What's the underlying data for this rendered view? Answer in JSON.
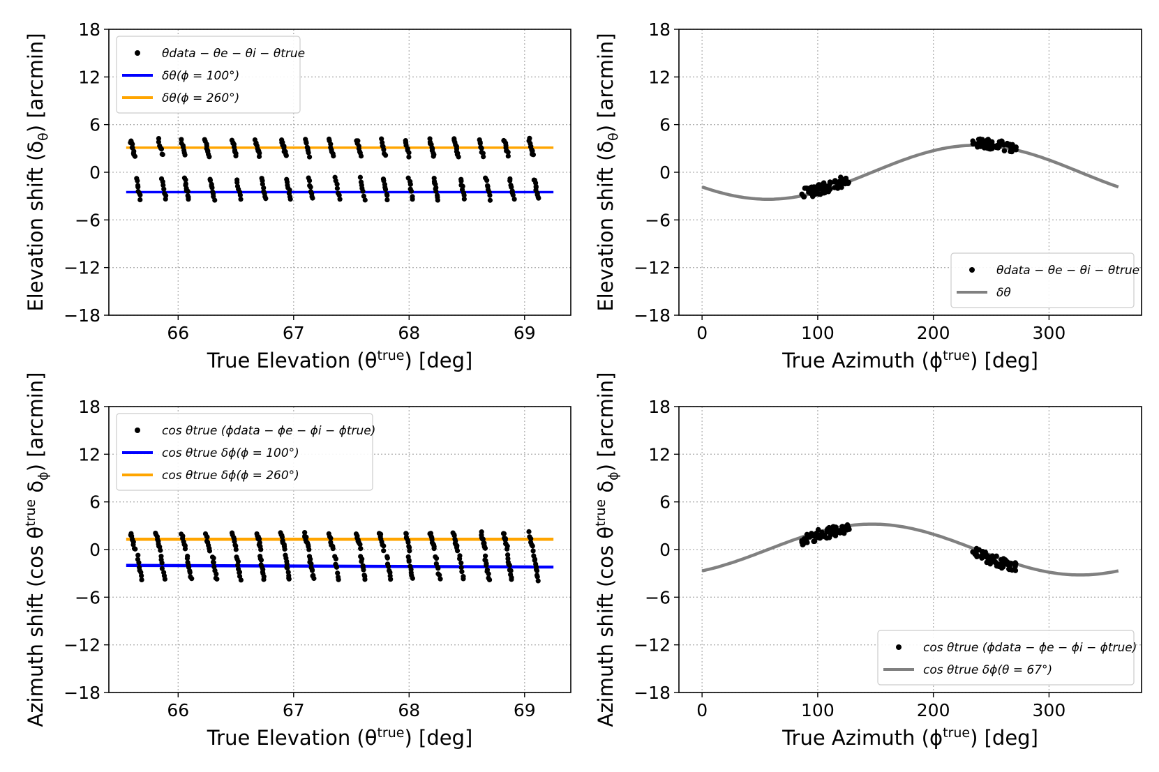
{
  "chart_data": [
    {
      "id": "p1",
      "type": "scatter",
      "xlabel": "True Elevation (θ",
      "xlabel_sup": "true",
      "xlabel_end": ") [deg]",
      "ylabel": "Elevation shift (δ",
      "ylabel_sub": "θ",
      "ylabel_end": ") [arcmin]",
      "xlim": [
        65.4,
        69.4
      ],
      "ylim": [
        -18,
        18
      ],
      "xticks": [
        66,
        67,
        68,
        69
      ],
      "yticks": [
        18,
        12,
        6,
        0,
        -6,
        -12,
        -18
      ],
      "ytick_labels": [
        "18",
        "12",
        "6",
        "0",
        "−6",
        "−12",
        "−18"
      ],
      "legend_position": "upper-left",
      "legend": [
        {
          "kind": "dot",
          "color": "#000000",
          "label": "θdata − θe − θi − θtrue"
        },
        {
          "kind": "line",
          "color": "#0000ff",
          "label": "δθ(ϕ = 100°)"
        },
        {
          "kind": "line",
          "color": "#ffa500",
          "label": "δθ(ϕ = 260°)"
        }
      ],
      "lines": [
        {
          "name": "δθ(ϕ = 100°)",
          "color": "#0000ff",
          "width": 3.5,
          "x": [
            65.55,
            69.25
          ],
          "y": [
            -2.5,
            -2.5
          ]
        },
        {
          "name": "δθ(ϕ = 260°)",
          "color": "#ffa500",
          "width": 3.5,
          "x": [
            65.55,
            69.25
          ],
          "y": [
            3.1,
            3.1
          ]
        }
      ],
      "scatter_series": [
        {
          "name": "θdata − θe − θi − θtrue (ϕ≈260°)",
          "color": "#000000",
          "x_start": 65.6,
          "x_step": 0.215,
          "count": 17,
          "y_top": 4.1,
          "y_bottom": 2.1
        },
        {
          "name": "θdata − θe − θi − θtrue (ϕ≈100°)",
          "color": "#000000",
          "x_start": 65.64,
          "x_step": 0.215,
          "count": 17,
          "y_top": -0.8,
          "y_bottom": -3.4
        }
      ]
    },
    {
      "id": "p2",
      "type": "scatter",
      "xlabel": "True Azimuth (ϕ",
      "xlabel_sup": "true",
      "xlabel_end": ") [deg]",
      "ylabel": "Elevation shift (δ",
      "ylabel_sub": "θ",
      "ylabel_end": ") [arcmin]",
      "xlim": [
        -20,
        380
      ],
      "ylim": [
        -18,
        18
      ],
      "xticks": [
        0,
        100,
        200,
        300
      ],
      "yticks": [
        18,
        12,
        6,
        0,
        -6,
        -12,
        -18
      ],
      "ytick_labels": [
        "18",
        "12",
        "6",
        "0",
        "−6",
        "−12",
        "−18"
      ],
      "legend_position": "lower-right",
      "legend": [
        {
          "kind": "dot",
          "color": "#000000",
          "label": "θdata − θe − θi − θtrue"
        },
        {
          "kind": "line",
          "color": "#808080",
          "label": "δθ"
        }
      ],
      "curve": {
        "name": "δθ",
        "color": "#808080",
        "width": 4.5,
        "amplitude": 3.4,
        "phase_deg": 147,
        "x_range": [
          0,
          360
        ]
      },
      "clusters": [
        {
          "x_min": 86,
          "x_max": 128,
          "y_center_offset": 0.3,
          "y_spread": 1.4
        },
        {
          "x_min": 234,
          "x_max": 272,
          "y_center_offset": 0.2,
          "y_spread": 1.2
        }
      ]
    },
    {
      "id": "p3",
      "type": "scatter",
      "xlabel": "True Elevation (θ",
      "xlabel_sup": "true",
      "xlabel_end": ") [deg]",
      "ylabel": "Azimuth shift (cos θ",
      "ylabel_sup": "true",
      "ylabel_mid": " δ",
      "ylabel_sub": "ϕ",
      "ylabel_end": ") [arcmin]",
      "xlim": [
        65.4,
        69.4
      ],
      "ylim": [
        -18,
        18
      ],
      "xticks": [
        66,
        67,
        68,
        69
      ],
      "yticks": [
        18,
        12,
        6,
        0,
        -6,
        -12,
        -18
      ],
      "ytick_labels": [
        "18",
        "12",
        "6",
        "0",
        "−6",
        "−12",
        "−18"
      ],
      "legend_position": "upper-left",
      "legend": [
        {
          "kind": "dot",
          "color": "#000000",
          "label": "cos θtrue (ϕdata − ϕe − ϕi − ϕtrue)"
        },
        {
          "kind": "line",
          "color": "#0000ff",
          "label": "cos θtrue δϕ(ϕ = 100°)"
        },
        {
          "kind": "line",
          "color": "#ffa500",
          "label": "cos θtrue δϕ(ϕ = 260°)"
        }
      ],
      "lines": [
        {
          "name": "cos θtrue δϕ(ϕ = 100°)",
          "color": "#0000ff",
          "width": 4.5,
          "x": [
            65.55,
            69.25
          ],
          "y": [
            -2.0,
            -2.2
          ]
        },
        {
          "name": "cos θtrue δϕ(ϕ = 260°)",
          "color": "#ffa500",
          "width": 4.5,
          "x": [
            65.55,
            69.25
          ],
          "y": [
            1.3,
            1.3
          ]
        }
      ],
      "scatter_series": [
        {
          "name": "cos θtrue (…) (ϕ≈260°)",
          "color": "#000000",
          "x_start": 65.6,
          "x_step": 0.215,
          "count": 17,
          "y_top": 2.1,
          "y_bottom": 0.0
        },
        {
          "name": "cos θtrue (…) (ϕ≈100°)",
          "color": "#000000",
          "x_start": 65.64,
          "x_step": 0.215,
          "count": 17,
          "y_top": -0.8,
          "y_bottom": -3.8
        }
      ]
    },
    {
      "id": "p4",
      "type": "scatter",
      "xlabel": "True Azimuth (ϕ",
      "xlabel_sup": "true",
      "xlabel_end": ") [deg]",
      "ylabel": "Azimuth shift (cos θ",
      "ylabel_sup": "true",
      "ylabel_mid": " δ",
      "ylabel_sub": "ϕ",
      "ylabel_end": ") [arcmin]",
      "xlim": [
        -20,
        380
      ],
      "ylim": [
        -18,
        18
      ],
      "xticks": [
        0,
        100,
        200,
        300
      ],
      "yticks": [
        18,
        12,
        6,
        0,
        -6,
        -12,
        -18
      ],
      "ytick_labels": [
        "18",
        "12",
        "6",
        "0",
        "−6",
        "−12",
        "−18"
      ],
      "legend_position": "lower-right",
      "legend": [
        {
          "kind": "dot",
          "color": "#000000",
          "label": "cos θtrue (ϕdata − ϕe − ϕi − ϕtrue)"
        },
        {
          "kind": "line",
          "color": "#808080",
          "label": "cos θtrue δϕ(θ = 67°)"
        }
      ],
      "curve": {
        "name": "cos θtrue δϕ(θ = 67°)",
        "color": "#808080",
        "width": 4.5,
        "amplitude": 3.2,
        "phase_deg": 57,
        "x_range": [
          0,
          360
        ]
      },
      "clusters": [
        {
          "x_min": 86,
          "x_max": 128,
          "y_center_offset": -0.4,
          "y_spread": 1.4
        },
        {
          "x_min": 234,
          "x_max": 272,
          "y_center_offset": -0.5,
          "y_spread": 1.3
        }
      ]
    }
  ]
}
